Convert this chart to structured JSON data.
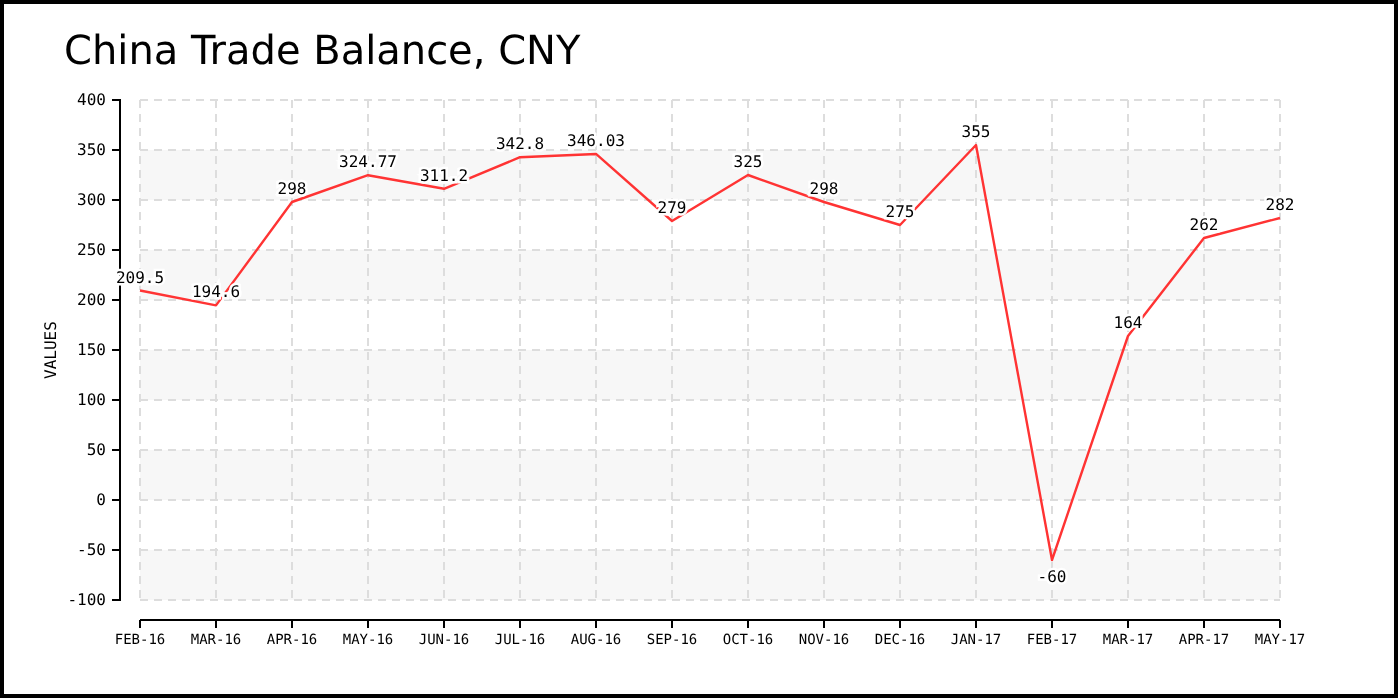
{
  "chart_data": {
    "type": "line",
    "title": "China Trade Balance, CNY",
    "ylabel": "VALUES",
    "categories": [
      "FEB-16",
      "MAR-16",
      "APR-16",
      "MAY-16",
      "JUN-16",
      "JUL-16",
      "AUG-16",
      "SEP-16",
      "OCT-16",
      "NOV-16",
      "DEC-16",
      "JAN-17",
      "FEB-17",
      "MAR-17",
      "APR-17",
      "MAY-17"
    ],
    "series": [
      {
        "color": "#ff3333",
        "values": [
          209.5,
          194.6,
          298,
          324.77,
          311.2,
          342.8,
          346.03,
          279,
          325,
          298,
          275,
          355,
          -60,
          164,
          262,
          282
        ]
      }
    ],
    "ylim": [
      -100,
      400
    ],
    "yticks": [
      -100,
      -50,
      0,
      50,
      100,
      150,
      200,
      250,
      300,
      350,
      400
    ],
    "grid": true,
    "data_labels": true,
    "marker": "none"
  }
}
